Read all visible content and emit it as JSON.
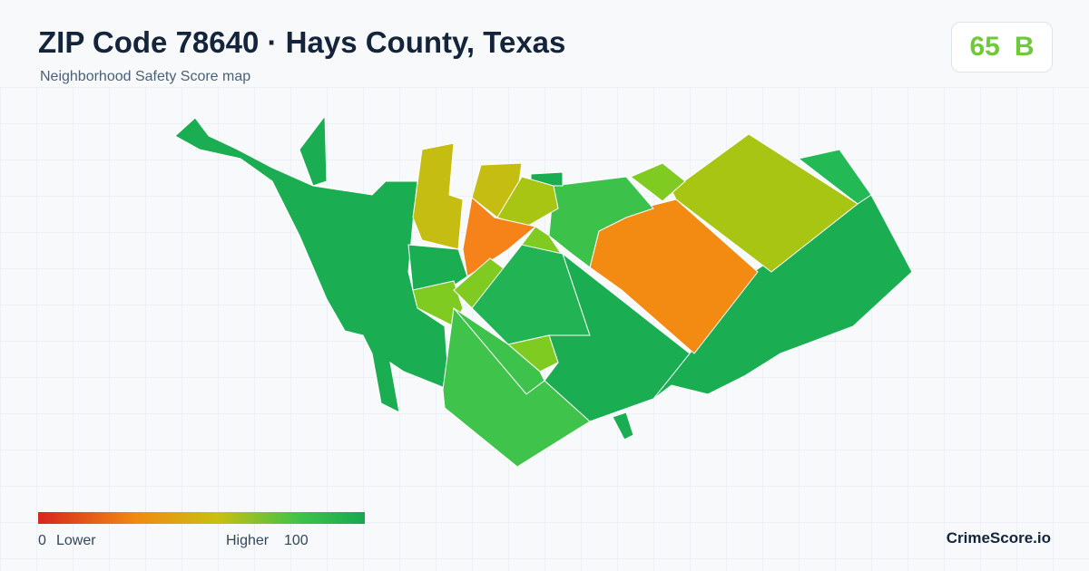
{
  "header": {
    "title": "ZIP Code 78640 · Hays County, Texas",
    "subtitle": "Neighborhood Safety Score map"
  },
  "score": {
    "value": 65,
    "grade": "B"
  },
  "legend": {
    "min": "0",
    "min_label": "Lower",
    "max_label": "Higher",
    "max": "100"
  },
  "brand": "CrimeScore.io"
}
